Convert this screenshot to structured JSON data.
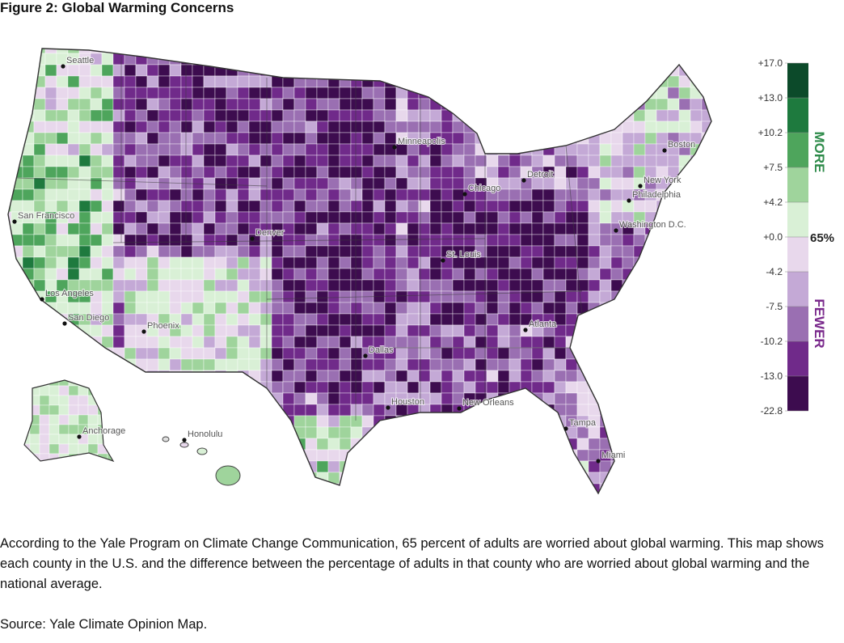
{
  "figure_title": "Figure 2: Global Warming Concerns",
  "map": {
    "cities": [
      "Seattle",
      "San Francisco",
      "Los Angeles",
      "San Diego",
      "Phoenix",
      "Denver",
      "Dallas",
      "Houston",
      "New Orleans",
      "Tampa",
      "Miami",
      "Atlanta",
      "St. Louis",
      "Chicago",
      "Minneapolis",
      "Detroit",
      "Washington D.C.",
      "Philadelphia",
      "New York",
      "Boston",
      "Anchorage",
      "Honolulu"
    ]
  },
  "legend": {
    "ticks": [
      "+17.0",
      "+13.0",
      "+10.2",
      "+7.5",
      "+4.2",
      "+0.0",
      "-4.2",
      "-7.5",
      "-10.2",
      "-13.0",
      "-22.8"
    ],
    "colors": [
      "#0c4a2a",
      "#1e7a3e",
      "#4ea55c",
      "#9fd49c",
      "#d9f0d6",
      "#e8d8ec",
      "#c4a9d6",
      "#9a6fb2",
      "#702a8a",
      "#3d0c4f"
    ],
    "more_label": "MORE",
    "fewer_label": "FEWER",
    "national_avg": "65%",
    "more_color": "#2e8b4a",
    "fewer_color": "#7a2a8c"
  },
  "caption": "According to the Yale Program on Climate Change Communication, 65 percent of adults are worried about global warming. This map shows each county in the U.S. and the difference between the percentage of adults in that county who are worried about global warming and the national average.",
  "source": "Source: Yale Climate Opinion Map."
}
